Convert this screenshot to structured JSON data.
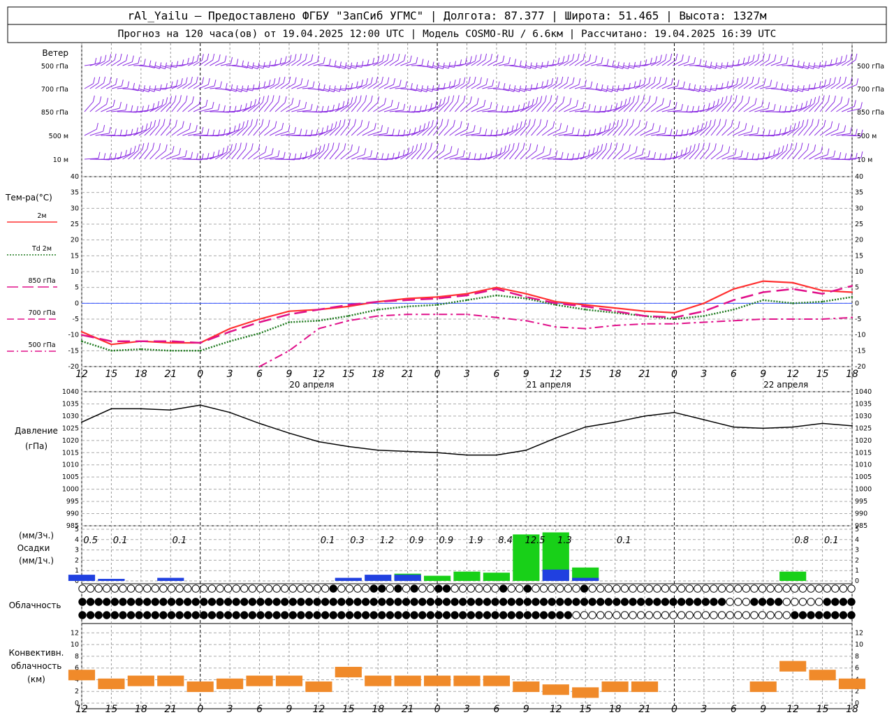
{
  "header": {
    "line1": "rAl_Yailu  —  Предоставлено ФГБУ \"ЗапСиб УГМС\" | Долгота: 87.377 | Широта: 51.465 | Высота: 1327м",
    "line2": "Прогноз на 120 часа(ов) от 19.04.2025 12:00 UTC  | Модель COSMO-RU / 6.6км | Рассчитано: 19.04.2025 16:39 UTC"
  },
  "wind": {
    "title": "Ветер",
    "levels": [
      "500 гПа",
      "700 гПа",
      "850 гПа",
      "500 м",
      "10  м"
    ],
    "color": "#8a2be2"
  },
  "temperature": {
    "title": "Тем-ра(°C)",
    "legend": [
      {
        "label": "2м",
        "color": "#ff3030",
        "style": "solid"
      },
      {
        "label": "Td 2м",
        "color": "#1f7a1f",
        "style": "dotted"
      },
      {
        "label": "850 гПа",
        "color": "#e0108a",
        "style": "long-dash"
      },
      {
        "label": "700 гПа",
        "color": "#e0108a",
        "style": "dash"
      },
      {
        "label": "500 гПа",
        "color": "#e0108a",
        "style": "dash-dot"
      }
    ],
    "yticks": [
      "40",
      "35",
      "30",
      "25",
      "20",
      "15",
      "10",
      "5",
      "0",
      "-5",
      "-10",
      "-15",
      "-20"
    ]
  },
  "x_axis": {
    "hour_labels": [
      "12",
      "15",
      "18",
      "21",
      "0",
      "3",
      "6",
      "9",
      "12",
      "15",
      "18",
      "21",
      "0",
      "3",
      "6",
      "9",
      "12",
      "15",
      "18",
      "21",
      "0",
      "3",
      "6",
      "9",
      "12",
      "15",
      "18"
    ],
    "day_labels": [
      "20 апреля",
      "21 апреля",
      "22 апреля"
    ]
  },
  "pressure": {
    "title": "Давление",
    "unit": "(гПа)",
    "yticks": [
      "1040",
      "1035",
      "1030",
      "1025",
      "1020",
      "1015",
      "1010",
      "1005",
      "1000",
      "995",
      "990",
      "985"
    ]
  },
  "precip": {
    "unit_top": "(мм/3ч.)",
    "title": "Осадки",
    "unit_bottom": "(мм/1ч.)",
    "yticks": [
      "5",
      "4",
      "3",
      "2",
      "1",
      "0"
    ],
    "totals": [
      "0.5",
      "0.1",
      "0.1",
      "0.1",
      "0.3",
      "1.2",
      "0.9",
      "0.9",
      "1.9",
      "8.4",
      "12.5",
      "1.3",
      "0.1",
      "0.8",
      "0.1"
    ]
  },
  "clouds": {
    "title": "Облачность"
  },
  "convective": {
    "title_line1": "Конвективн.",
    "title_line2": "облачность",
    "unit": "(км)",
    "yticks": [
      "12",
      "10",
      "8",
      "6",
      "4",
      "2",
      "0"
    ]
  },
  "chart_data": {
    "type": "line",
    "x": [
      "19.04 12",
      "19.04 15",
      "19.04 18",
      "19.04 21",
      "20.04 00",
      "20.04 03",
      "20.04 06",
      "20.04 09",
      "20.04 12",
      "20.04 15",
      "20.04 18",
      "20.04 21",
      "21.04 00",
      "21.04 03",
      "21.04 06",
      "21.04 09",
      "21.04 12",
      "21.04 15",
      "21.04 18",
      "21.04 21",
      "22.04 00",
      "22.04 03",
      "22.04 06",
      "22.04 09",
      "22.04 12",
      "22.04 15",
      "22.04 18"
    ],
    "series": [
      {
        "name": "2м",
        "values": [
          -9,
          -13,
          -12,
          -12.5,
          -12.5,
          -8,
          -5,
          -2.5,
          -2,
          -1,
          0.5,
          1.5,
          2,
          3,
          5,
          3,
          0.5,
          -0.5,
          -1.5,
          -2.5,
          -3,
          0,
          4.5,
          7,
          6.5,
          4,
          3.5
        ]
      },
      {
        "name": "Td 2м",
        "values": [
          -12,
          -15,
          -14.5,
          -15,
          -15,
          -12,
          -9.5,
          -6,
          -5.5,
          -4,
          -2,
          -1,
          -0.5,
          1,
          2.5,
          1.5,
          -0.5,
          -2,
          -3,
          -4,
          -5,
          -4,
          -2,
          1,
          0,
          0.5,
          2
        ]
      },
      {
        "name": "850 гПа",
        "values": [
          -10,
          -12,
          -12,
          -12,
          -12.5,
          -9,
          -6,
          -3.5,
          -2,
          -0.5,
          0.5,
          1,
          1.5,
          2.5,
          4.5,
          2,
          0,
          -1,
          -2.5,
          -4,
          -4.5,
          -2.5,
          1,
          3.5,
          4.5,
          3,
          5.5
        ]
      },
      {
        "name": "500 гПа",
        "values": [
          null,
          null,
          null,
          null,
          null,
          null,
          -20,
          -15,
          -8,
          -5.5,
          -4,
          -3.5,
          -3.5,
          -3.5,
          -4.5,
          -5.5,
          -7.5,
          -8,
          -7,
          -6.5,
          -6.5,
          -6,
          -5.5,
          -5,
          -5,
          -5,
          -4.5
        ]
      }
    ],
    "pressure_values": [
      1027.5,
      1033,
      1033,
      1032.5,
      1034.5,
      1031.5,
      1027,
      1023,
      1019.5,
      1017.5,
      1016,
      1015.5,
      1015,
      1014,
      1014,
      1016,
      1021,
      1025.5,
      1027.5,
      1030,
      1031.5,
      1028.5,
      1025.5,
      1025,
      1025.5,
      1027,
      1026
    ],
    "precip_green_3h": [
      0,
      0,
      0,
      0,
      0,
      0,
      0,
      0,
      0,
      0,
      0,
      0.7,
      0.5,
      0.9,
      0.8,
      4.5,
      4.7,
      1.3,
      0,
      0,
      0,
      0,
      0,
      0,
      0.9,
      0,
      0
    ],
    "precip_blue_3h": [
      0.6,
      0.2,
      0,
      0.3,
      0,
      0,
      0,
      0,
      0,
      0.3,
      0.6,
      0.6,
      0,
      0,
      0,
      0,
      1.1,
      0.3,
      0,
      0,
      0,
      0,
      0,
      0,
      0,
      0,
      0
    ],
    "convective_km": [
      4.5,
      3,
      3.5,
      3.5,
      2.5,
      3,
      3.5,
      3.5,
      2.5,
      5,
      3.5,
      3.5,
      3.5,
      3.5,
      3.5,
      2.5,
      2,
      1.5,
      2.5,
      2.5,
      0,
      0,
      0,
      2.5,
      6,
      4.5,
      3
    ],
    "ylim_temp": [
      -20,
      40
    ],
    "ylim_pressure": [
      985,
      1040
    ],
    "ylim_precip": [
      0,
      5
    ],
    "ylim_convective": [
      0,
      13
    ]
  }
}
